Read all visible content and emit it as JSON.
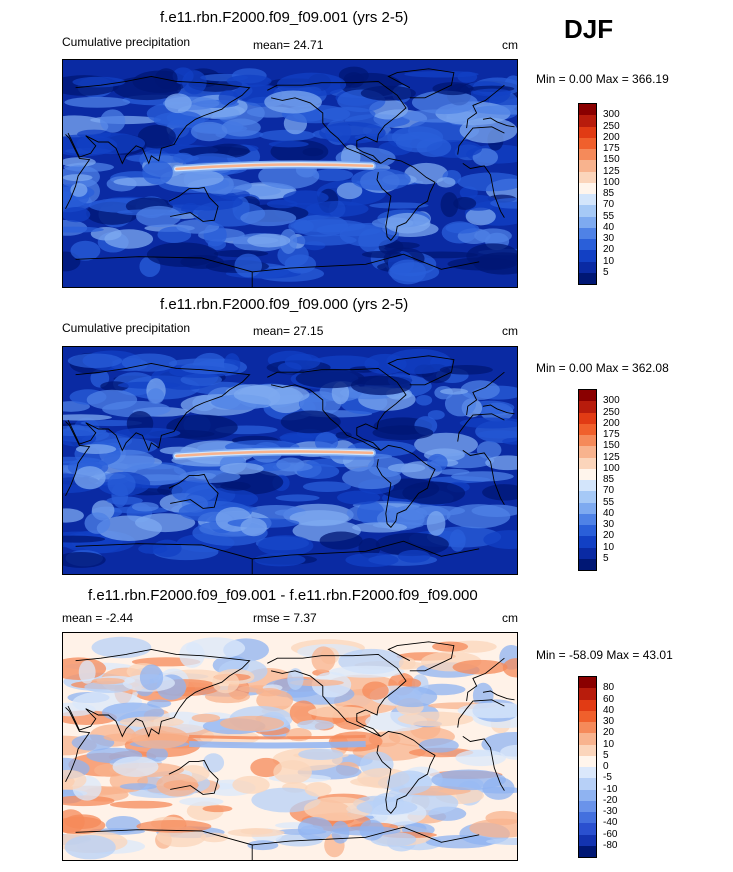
{
  "season": "DJF",
  "panels": [
    {
      "title": "f.e11.rbn.F2000.f09_f09.001 (yrs 2-5)",
      "left_label": "Cumulative precipitation",
      "mean_label": "mean=  24.71",
      "units": "cm",
      "minmax": "Min =   0.00 Max = 366.19",
      "colorbar_labels": [
        "300",
        "250",
        "200",
        "175",
        "150",
        "125",
        "100",
        "85",
        "70",
        "55",
        "40",
        "30",
        "20",
        "10",
        "5"
      ],
      "colorbar_colors": [
        "#8a0000",
        "#b81c0c",
        "#e13b14",
        "#f0602c",
        "#f58a5a",
        "#f8b38e",
        "#fbd5bb",
        "#fff5ec",
        "#d3e5fb",
        "#a6c9f6",
        "#7eaaf0",
        "#4f82e6",
        "#2a5fd9",
        "#1240c4",
        "#0a2aa3",
        "#001774"
      ],
      "map_mode": "precip"
    },
    {
      "title": "f.e11.rbn.F2000.f09_f09.000 (yrs 2-5)",
      "left_label": "Cumulative precipitation",
      "mean_label": "mean=  27.15",
      "units": "cm",
      "minmax": "Min =   0.00 Max = 362.08",
      "colorbar_labels": [
        "300",
        "250",
        "200",
        "175",
        "150",
        "125",
        "100",
        "85",
        "70",
        "55",
        "40",
        "30",
        "20",
        "10",
        "5"
      ],
      "colorbar_colors": [
        "#8a0000",
        "#b81c0c",
        "#e13b14",
        "#f0602c",
        "#f58a5a",
        "#f8b38e",
        "#fbd5bb",
        "#fff5ec",
        "#d3e5fb",
        "#a6c9f6",
        "#7eaaf0",
        "#4f82e6",
        "#2a5fd9",
        "#1240c4",
        "#0a2aa3",
        "#001774"
      ],
      "map_mode": "precip"
    },
    {
      "title": "f.e11.rbn.F2000.f09_f09.001 - f.e11.rbn.F2000.f09_f09.000",
      "left_label": "mean =  -2.44",
      "mean_label": "rmse =   7.37",
      "units": "cm",
      "minmax": "Min = -58.09 Max =  43.01",
      "colorbar_labels": [
        "80",
        "60",
        "40",
        "30",
        "20",
        "10",
        "5",
        "0",
        "-5",
        "-10",
        "-20",
        "-30",
        "-40",
        "-60",
        "-80"
      ],
      "colorbar_colors": [
        "#8a0000",
        "#b81c0c",
        "#e13b14",
        "#f0602c",
        "#f58a5a",
        "#f8b38e",
        "#fbd5bb",
        "#fff5ec",
        "#dbe8fb",
        "#b7d0f7",
        "#8fb3f1",
        "#6a93ea",
        "#4470de",
        "#2a50cf",
        "#1333b0",
        "#001774"
      ],
      "map_mode": "diff"
    }
  ],
  "chart_data": [
    {
      "type": "heatmap",
      "title": "f.e11.rbn.F2000.f09_f09.001 (yrs 2-5)",
      "subtitle": "Cumulative precipitation",
      "units": "cm",
      "mean": 24.71,
      "min": 0.0,
      "max": 366.19,
      "colorbar_levels": [
        5,
        10,
        20,
        30,
        40,
        55,
        70,
        85,
        100,
        125,
        150,
        175,
        200,
        250,
        300
      ]
    },
    {
      "type": "heatmap",
      "title": "f.e11.rbn.F2000.f09_f09.000 (yrs 2-5)",
      "subtitle": "Cumulative precipitation",
      "units": "cm",
      "mean": 27.15,
      "min": 0.0,
      "max": 362.08,
      "colorbar_levels": [
        5,
        10,
        20,
        30,
        40,
        55,
        70,
        85,
        100,
        125,
        150,
        175,
        200,
        250,
        300
      ]
    },
    {
      "type": "heatmap",
      "title": "f.e11.rbn.F2000.f09_f09.001 - f.e11.rbn.F2000.f09_f09.000",
      "units": "cm",
      "mean": -2.44,
      "rmse": 7.37,
      "min": -58.09,
      "max": 43.01,
      "colorbar_levels": [
        -80,
        -60,
        -40,
        -30,
        -20,
        -10,
        -5,
        0,
        5,
        10,
        20,
        30,
        40,
        60,
        80
      ]
    }
  ]
}
